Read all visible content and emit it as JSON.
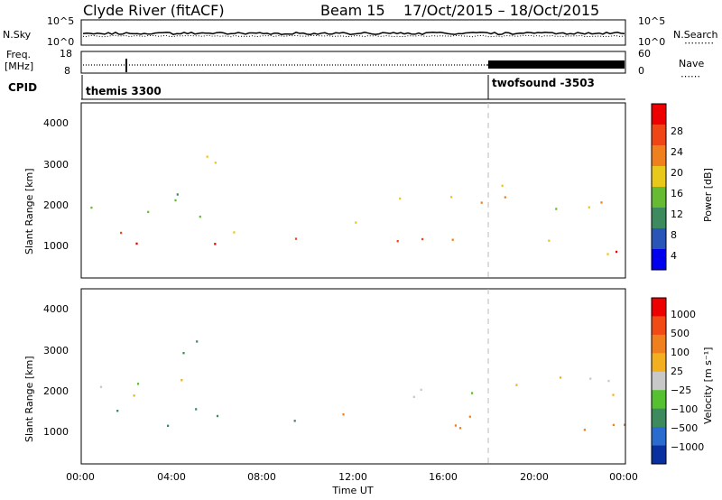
{
  "header": {
    "station": "Clyde River (fitACF)",
    "beam": "Beam 15",
    "date_range": "17/Oct/2015 – 18/Oct/2015"
  },
  "panels": {
    "nsky_label": "N.Sky",
    "nsearch_label": "N.Search",
    "freq_label_line1": "Freq.",
    "freq_label_line2": "[MHz]",
    "nave_label": "Nave",
    "cpid_label": "CPID",
    "ntick_top": "10^5",
    "ntick_bottom": "10^0",
    "freq_tick_top": "18",
    "freq_tick_bottom": "8",
    "nave_tick_top": "60",
    "nave_tick_bottom": "0"
  },
  "cpid": {
    "first": "themis 3300",
    "second": "twofsound -3503",
    "switch_time_h": 18.0
  },
  "axes": {
    "ylabel": "Slant Range [km]",
    "xlabel": "Time UT",
    "y_ticks": [
      "4000",
      "3000",
      "2000",
      "1000"
    ],
    "x_ticks": [
      "00:00",
      "04:00",
      "08:00",
      "12:00",
      "16:00",
      "20:00",
      "00:00"
    ]
  },
  "colorbars": {
    "power": {
      "label": "Power [dB]",
      "ticks": [
        "28",
        "24",
        "20",
        "16",
        "12",
        "8",
        "4"
      ],
      "colors": [
        "#0000ee",
        "#2a55b8",
        "#3d8a5e",
        "#66bb33",
        "#e8c81a",
        "#f07f1e",
        "#f04515",
        "#ee0000"
      ]
    },
    "velocity": {
      "label": "Velocity [m s⁻¹]",
      "ticks": [
        "1000",
        "500",
        "100",
        "25",
        "−25",
        "−100",
        "−500",
        "−1000"
      ],
      "colors": [
        "#0a2f9e",
        "#2a6bd0",
        "#3d8a5e",
        "#55c030",
        "#c8c8c8",
        "#f2b020",
        "#f07f1e",
        "#f04a15",
        "#ee0000"
      ]
    }
  },
  "chart_data": {
    "type": "heatmap",
    "title": "Clyde River (fitACF)",
    "xlabel": "Time UT",
    "ylabel": "Slant Range [km]",
    "xlim_hours": [
      0,
      24
    ],
    "ylim_km": [
      180,
      4600
    ],
    "x_ticks_hours": [
      0,
      4,
      8,
      12,
      16,
      20,
      24
    ],
    "y_ticks_km": [
      1000,
      2000,
      3000,
      4000
    ],
    "series": [
      {
        "name": "Power [dB]",
        "scale": [
          4,
          28
        ],
        "regions": [
          {
            "t": [
              0.1,
              6.2
            ],
            "r": [
              700,
              1400
            ],
            "value": 26
          },
          {
            "t": [
              0.1,
              6.5
            ],
            "r": [
              1400,
              2500
            ],
            "value": 16
          },
          {
            "t": [
              3.0,
              6.0
            ],
            "r": [
              2600,
              3600
            ],
            "value": 12
          },
          {
            "t": [
              6.0,
              8.2
            ],
            "r": [
              900,
              1400
            ],
            "value": 14
          },
          {
            "t": [
              9.0,
              11.0
            ],
            "r": [
              800,
              1600
            ],
            "value": 22
          },
          {
            "t": [
              11.0,
              13.5
            ],
            "r": [
              1300,
              1900
            ],
            "value": 12
          },
          {
            "t": [
              13.5,
              18.0
            ],
            "r": [
              600,
              1500
            ],
            "value": 24
          },
          {
            "t": [
              13.5,
              18.0
            ],
            "r": [
              1600,
              2500
            ],
            "value": 18
          },
          {
            "t": [
              18.0,
              24.0
            ],
            "r": [
              600,
              1400
            ],
            "value": 22
          },
          {
            "t": [
              18.0,
              24.0
            ],
            "r": [
              1500,
              2600
            ],
            "value": 16
          }
        ]
      },
      {
        "name": "Velocity [m/s]",
        "scale": [
          -1000,
          1000
        ],
        "regions": [
          {
            "t": [
              0.1,
              6.2
            ],
            "r": [
              700,
              1600
            ],
            "value": 300
          },
          {
            "t": [
              0.1,
              6.5
            ],
            "r": [
              1600,
              2500
            ],
            "value": 0
          },
          {
            "t": [
              3.0,
              6.0
            ],
            "r": [
              2600,
              3600
            ],
            "value": 150
          },
          {
            "t": [
              9.0,
              11.0
            ],
            "r": [
              800,
              1600
            ],
            "value": 150
          },
          {
            "t": [
              11.0,
              13.5
            ],
            "r": [
              1300,
              1900
            ],
            "value": -300
          },
          {
            "t": [
              13.5,
              18.0
            ],
            "r": [
              600,
              1500
            ],
            "value": -400
          },
          {
            "t": [
              13.5,
              18.0
            ],
            "r": [
              1600,
              2500
            ],
            "value": 0
          },
          {
            "t": [
              18.0,
              24.0
            ],
            "r": [
              600,
              1400
            ],
            "value": -150
          },
          {
            "t": [
              18.0,
              24.0
            ],
            "r": [
              1500,
              2600
            ],
            "value": 0
          }
        ]
      }
    ],
    "cpid_switch_hours": 18.0
  }
}
